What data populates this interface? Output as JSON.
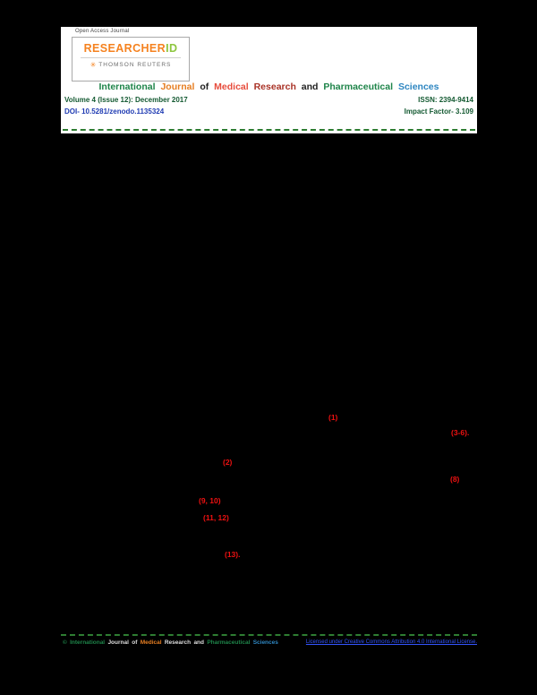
{
  "colors": {
    "brand_orange": "#f5821f",
    "brand_green": "#8dc63f",
    "title_green": "#1e8449",
    "title_orange": "#e67e22",
    "title_red": "#e74c3c",
    "title_maroon": "#a93226",
    "title_blue": "#2e86c1",
    "title_dark": "#212121",
    "meta_green": "#145a32",
    "doi_blue": "#1f3bb3",
    "separator_green": "#2e7d32",
    "citation_red": "#ee1111",
    "footer_link_blue": "#3355ff"
  },
  "header": {
    "open_access": "Open Access Journal",
    "logo": {
      "researcher": "RESEARCHER",
      "id": "ID",
      "icon": "✳",
      "thomson": "THOMSON REUTERS"
    },
    "title": {
      "w1": "International",
      "w2": "Journal",
      "w3": "of",
      "w4": "Medical",
      "w5": "Research",
      "w6": "and",
      "w7": "Pharmaceutical",
      "w8": "Sciences"
    },
    "volume": "Volume 4 (Issue 12): December 2017",
    "issn": "ISSN: 2394-9414",
    "doi": "DOI- 10.5281/zenodo.1135324",
    "impact": "Impact Factor- 3.109"
  },
  "body": {
    "citations": [
      "(1)",
      "(3-6).",
      "(2)",
      "(8)",
      "(9, 10)",
      "(11, 12)",
      "(13)."
    ]
  },
  "footer": {
    "copyright": {
      "w0": "©",
      "w1": "International",
      "w2": "Journal",
      "w3": "of",
      "w4": "Medical",
      "w5": "Research",
      "w6": "and",
      "w7": "Pharmaceutical",
      "w8": "Sciences"
    },
    "link": "Licensed under Creative Commons Attribution 4.0 International License."
  }
}
